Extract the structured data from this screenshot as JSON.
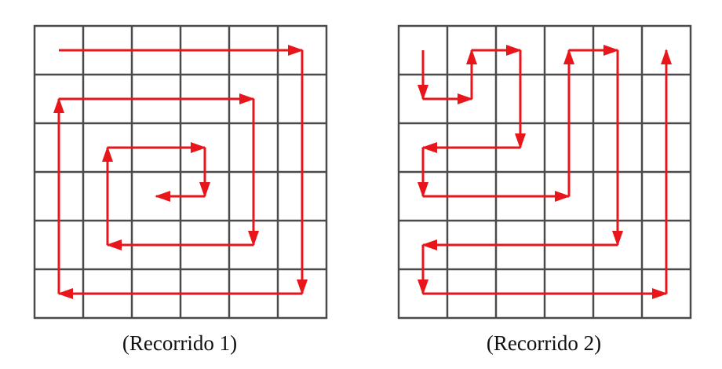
{
  "figures": [
    {
      "caption": "(Recorrido 1)",
      "rows": 6,
      "cols": 6,
      "path": [
        [
          0.5,
          0.5
        ],
        [
          5.5,
          0.5
        ],
        [
          5.5,
          5.5
        ],
        [
          0.5,
          5.5
        ],
        [
          0.5,
          1.5
        ],
        [
          4.5,
          1.5
        ],
        [
          4.5,
          4.5
        ],
        [
          1.5,
          4.5
        ],
        [
          1.5,
          2.5
        ],
        [
          3.5,
          2.5
        ],
        [
          3.5,
          3.5
        ],
        [
          2.5,
          3.5
        ]
      ],
      "reverse_arrow_segments": [
        11
      ]
    },
    {
      "caption": "(Recorrido 2)",
      "rows": 6,
      "cols": 6,
      "path": [
        [
          0.5,
          0.5
        ],
        [
          0.5,
          1.5
        ],
        [
          1.5,
          1.5
        ],
        [
          1.5,
          0.5
        ],
        [
          2.5,
          0.5
        ],
        [
          2.5,
          2.5
        ],
        [
          0.5,
          2.5
        ],
        [
          0.5,
          3.5
        ],
        [
          3.5,
          3.5
        ],
        [
          3.5,
          0.5
        ],
        [
          4.5,
          0.5
        ],
        [
          4.5,
          4.5
        ],
        [
          0.5,
          4.5
        ],
        [
          0.5,
          5.5
        ],
        [
          5.5,
          5.5
        ],
        [
          5.5,
          0.5
        ]
      ],
      "reverse_arrow_segments": []
    }
  ],
  "colors": {
    "grid": "#4a4a4a",
    "path": "#e8161b",
    "caption": "#111111"
  }
}
